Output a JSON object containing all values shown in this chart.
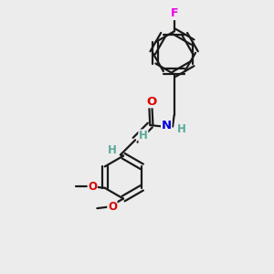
{
  "background_color": "#ececec",
  "bond_color": "#1a1a1a",
  "atom_colors": {
    "F": "#ee00ee",
    "O": "#dd0000",
    "N": "#0000dd",
    "H": "#5aaa9a",
    "C": "#1a1a1a"
  },
  "figsize": [
    3.0,
    3.0
  ],
  "dpi": 100,
  "bond_lw": 1.6
}
